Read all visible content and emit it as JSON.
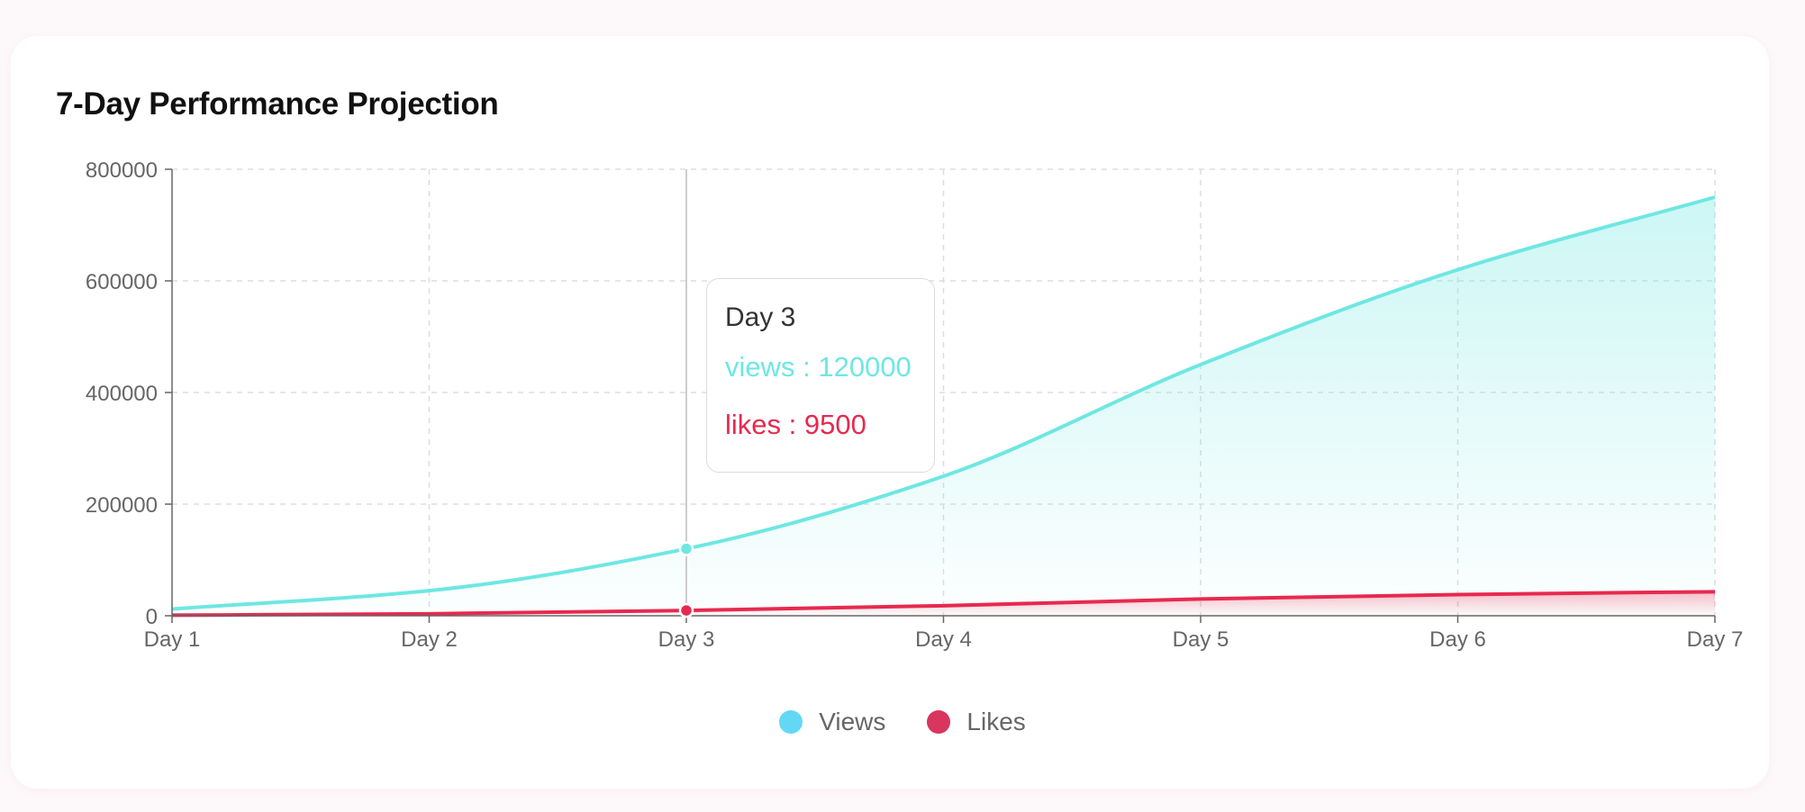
{
  "colors": {
    "views_line": "#6ee7e2",
    "likes_line": "#e8294f",
    "views_legend": "#62d8f5",
    "likes_legend": "#d8355f"
  },
  "chart_data": {
    "type": "area",
    "title": "7-Day Performance Projection",
    "categories": [
      "Day 1",
      "Day 2",
      "Day 3",
      "Day 4",
      "Day 5",
      "Day 6",
      "Day 7"
    ],
    "series": [
      {
        "name": "Views",
        "key": "views",
        "values": [
          12000,
          45000,
          120000,
          250000,
          450000,
          620000,
          750000
        ]
      },
      {
        "name": "Likes",
        "key": "likes",
        "values": [
          1000,
          3500,
          9500,
          18000,
          30000,
          38000,
          43000
        ]
      }
    ],
    "ylim": [
      0,
      800000
    ],
    "yticks": [
      0,
      200000,
      400000,
      600000,
      800000
    ],
    "grid": true,
    "legend": "bottom-center",
    "xlabel": "",
    "ylabel": ""
  },
  "tooltip": {
    "title": "Day 3",
    "views_text": "views : 120000",
    "likes_text": "likes : 9500",
    "active_index": 2
  },
  "legend": {
    "items": [
      {
        "label": "Views",
        "color": "#62d8f5"
      },
      {
        "label": "Likes",
        "color": "#d8355f"
      }
    ]
  }
}
